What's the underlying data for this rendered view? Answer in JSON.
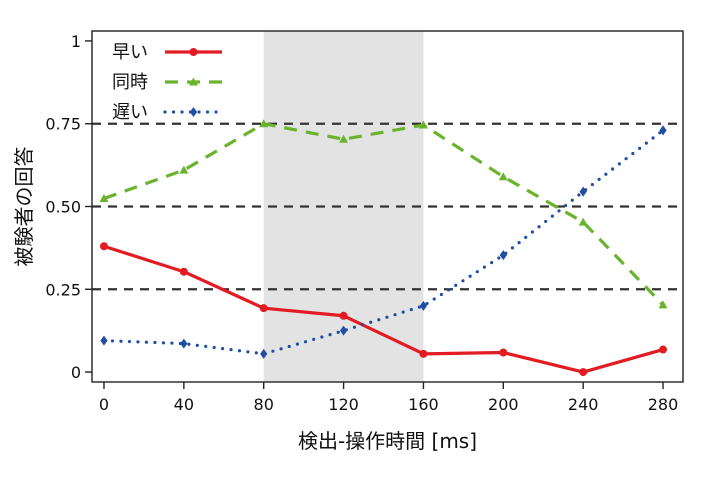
{
  "chart_data": {
    "type": "line",
    "xlabel": "検出-操作時間 [ms]",
    "ylabel": "被験者の回答",
    "x": [
      0,
      40,
      80,
      120,
      160,
      200,
      240,
      280
    ],
    "xlim": [
      -6,
      290
    ],
    "ylim": [
      -0.03,
      1.03
    ],
    "xticks": [
      "0",
      "40",
      "80",
      "120",
      "160",
      "200",
      "240",
      "280"
    ],
    "yticks": [
      "0",
      "0.25",
      "0.50",
      "0.75",
      "1"
    ],
    "reference_lines_y": [
      0.25,
      0.5,
      0.75
    ],
    "shaded_x_range": [
      80,
      160
    ],
    "legend_position": "top-left",
    "grid": false,
    "series": [
      {
        "name": "早い",
        "color": "#e31b23",
        "line_style": "solid",
        "marker": "circle",
        "values": [
          0.38,
          0.303,
          0.193,
          0.17,
          0.055,
          0.059,
          0.0,
          0.068
        ]
      },
      {
        "name": "同時",
        "color": "#6ab42d",
        "line_style": "dashed",
        "marker": "triangle",
        "values": [
          0.524,
          0.61,
          0.75,
          0.703,
          0.746,
          0.59,
          0.453,
          0.203
        ]
      },
      {
        "name": "遅い",
        "color": "#1f4fa3",
        "line_style": "dotted",
        "marker": "diamond",
        "values": [
          0.095,
          0.086,
          0.055,
          0.125,
          0.2,
          0.353,
          0.545,
          0.73
        ]
      }
    ]
  }
}
